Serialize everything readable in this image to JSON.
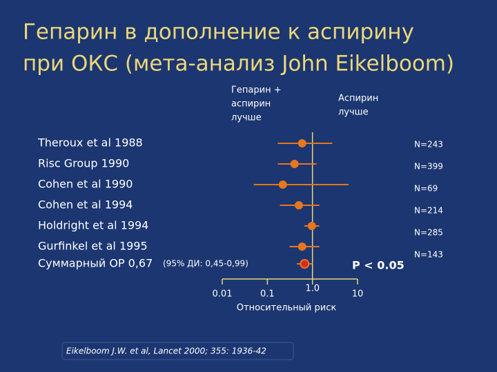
{
  "chart_data": {
    "type": "forest",
    "title": [
      "Гепарин в дополнение к аспирину",
      "при ОКС (мета-анализ John Eikelboom)"
    ],
    "left_annotation": [
      "Гепарин +",
      "аспирин",
      "лучше"
    ],
    "right_annotation": [
      "Аспирин",
      "лучше"
    ],
    "studies": [
      {
        "name": "Theroux et al 1988",
        "n": "N=243",
        "value": 0.59,
        "ci": [
          0.17,
          2.75
        ]
      },
      {
        "name": "Risc Group 1990",
        "n": "N=399",
        "value": 0.4,
        "ci": [
          0.17,
          1.23
        ]
      },
      {
        "name": "Cohen et al 1990",
        "n": "N=69",
        "value": 0.22,
        "ci": [
          0.05,
          6.3
        ]
      },
      {
        "name": "Cohen et al 1994",
        "n": "N=214",
        "value": 0.5,
        "ci": [
          0.19,
          1.42
        ]
      },
      {
        "name": "Holdright et al 1994",
        "n": "N=285",
        "value": 0.97,
        "ci": [
          0.66,
          1.42
        ]
      },
      {
        "name": "Gurfinkel et al 1995",
        "n": "N=143",
        "value": 0.59,
        "ci": [
          0.31,
          1.42
        ]
      }
    ],
    "summary": {
      "label": "Суммарный ОР 0,67",
      "ci_label": "(95% ДИ: 0,45-0,99)",
      "value": 0.67,
      "ci": [
        0.45,
        0.99
      ]
    },
    "p_label": "P < 0.05",
    "x_label": "Относительный риск",
    "log_x": true,
    "xlim": [
      0.01,
      10
    ],
    "xticks": [
      0.01,
      0.1,
      {
        "value": 1,
        "label": "1.0"
      },
      10
    ],
    "color": "#e8761e",
    "summary_color": "#d8281e",
    "citation": "Eikelboom J.W. et al, Lancet 2000; 355: 1936-42"
  }
}
